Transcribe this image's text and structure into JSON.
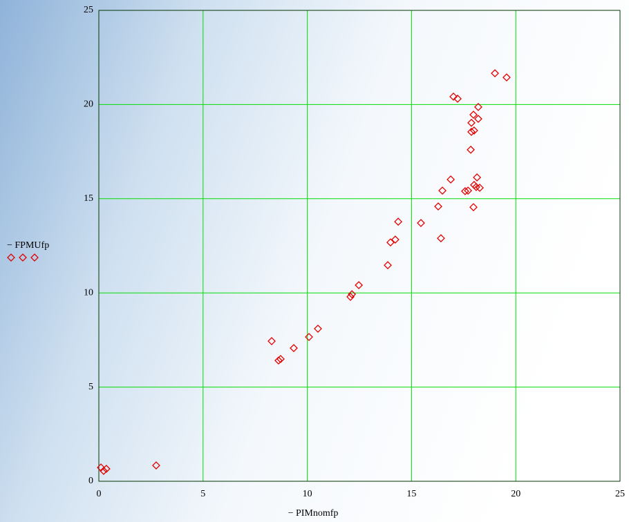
{
  "chart_data": {
    "type": "scatter",
    "xlabel": "− PIMnomfp",
    "ylabel": "− FPMUfp",
    "xlim": [
      0,
      25
    ],
    "ylim": [
      0,
      25
    ],
    "xticks": [
      0,
      5,
      10,
      15,
      20,
      25
    ],
    "yticks": [
      0,
      5,
      10,
      15,
      20,
      25
    ],
    "grid": true,
    "grid_color": "#00dd00",
    "series": [
      {
        "color": "#e00000",
        "x": [
          0.1,
          0.23,
          0.36,
          2.75,
          8.29,
          8.62,
          8.72,
          9.35,
          10.08,
          10.51,
          12.07,
          12.14,
          12.47,
          13.86,
          13.99,
          14.22,
          14.36,
          15.45,
          16.41,
          16.28,
          16.48,
          16.88,
          17.57,
          17.71,
          18.0,
          18.1,
          18.27,
          18.14,
          17.97,
          17.84,
          17.87,
          18.0,
          17.87,
          17.97,
          18.2,
          17.01,
          17.21,
          18.2,
          19.0,
          19.56
        ],
        "values": [
          0.73,
          0.55,
          0.66,
          0.84,
          7.44,
          6.41,
          6.49,
          7.07,
          7.66,
          8.1,
          9.79,
          9.93,
          10.41,
          11.47,
          12.68,
          12.83,
          13.78,
          13.71,
          12.9,
          14.59,
          15.43,
          16.02,
          15.4,
          15.43,
          15.73,
          15.62,
          15.58,
          16.13,
          14.55,
          17.6,
          18.55,
          18.62,
          19.03,
          19.46,
          19.24,
          20.42,
          20.31,
          19.87,
          21.66,
          21.44
        ]
      }
    ]
  }
}
